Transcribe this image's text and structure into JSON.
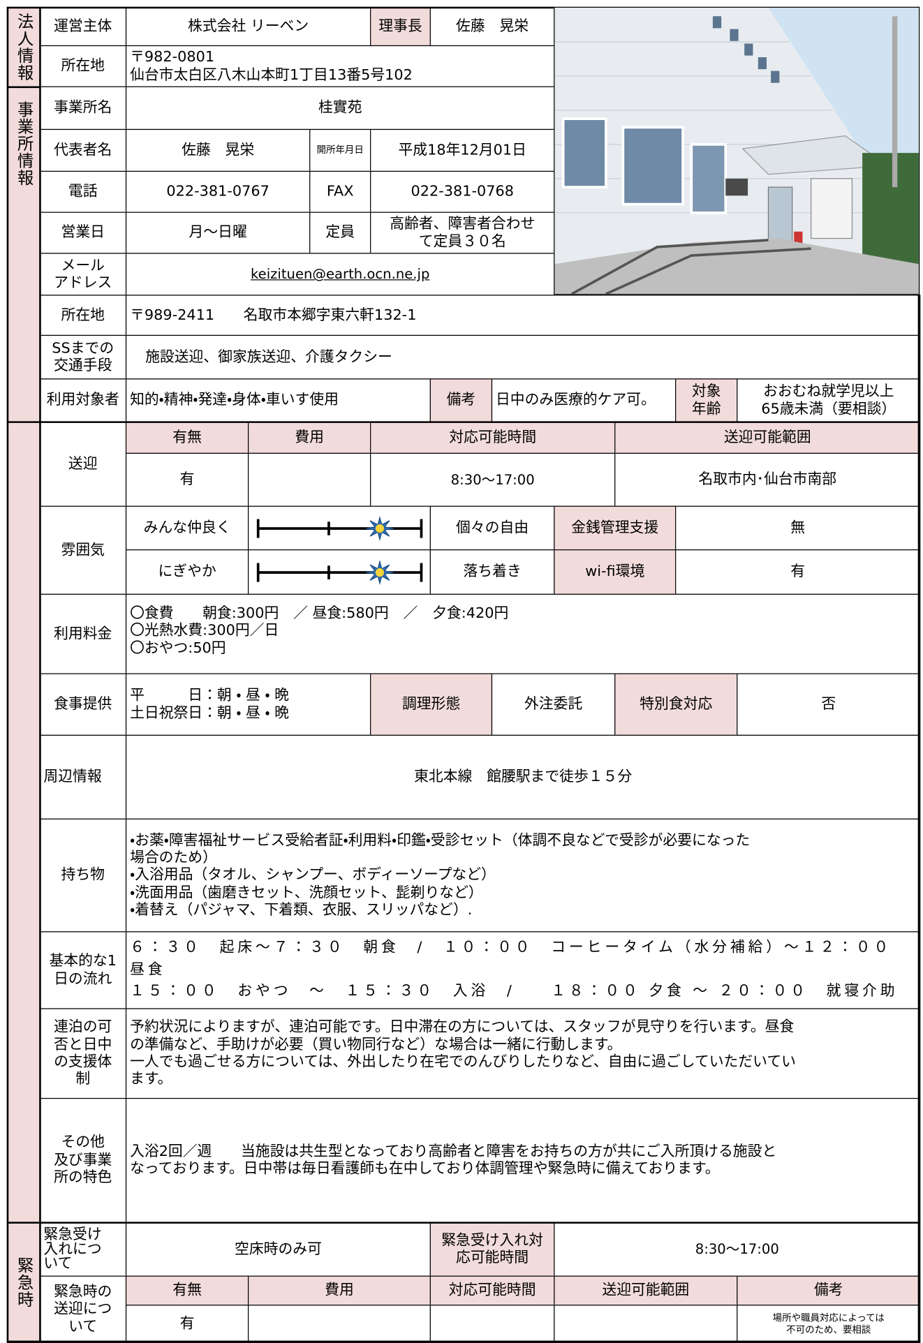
{
  "corporation": {
    "section": "法人情報",
    "operator_label": "運営主体",
    "operator": "株式会社 リーベン",
    "chair_label": "理事長",
    "chair": "佐藤　晃栄",
    "address_label": "所在地",
    "address": [
      "〒982-0801",
      "仙台市太白区八木山本町1丁目13番5号102"
    ]
  },
  "office": {
    "section": "事業所情報",
    "name_label": "事業所名",
    "name": "桂實苑",
    "rep_label": "代表者名",
    "rep": "佐藤　晃栄",
    "opened_label": "開所年月日",
    "opened": "平成18年12月01日",
    "tel_label": "電話",
    "tel": "022-381-0767",
    "fax_label": "FAX",
    "fax": "022-381-0768",
    "days_label": "営業日",
    "days": "月～日曜",
    "capacity_label": "定員",
    "capacity": [
      "高齢者、障害者合わせ",
      "て定員３０名"
    ],
    "mail_label": [
      "メール",
      "アドレス"
    ],
    "mail": "keizituen@earth.ocn.ne.jp",
    "address_label": "所在地",
    "address": "〒989-2411　　名取市本郷字東六軒132-1",
    "access_label": [
      "SSまでの",
      "交通手段"
    ],
    "access": "施設送迎、御家族送迎、介護タクシー",
    "target_label": "利用対象者",
    "target": "知的・精神・発達・身体・車いす使用",
    "remarks_label": "備考",
    "remarks": "日中のみ医療的ケア可。",
    "age_label": [
      "対象",
      "年齢"
    ],
    "age": [
      "おおむね就学児以上",
      "65歳未満（要相談）"
    ]
  },
  "services": {
    "transport_label": "送迎",
    "transport_headers": [
      "有無",
      "費用",
      "対応可能時間",
      "送迎可能範囲"
    ],
    "transport": {
      "available": "有",
      "hours": "8:30～17:00",
      "area": "名取市内･仙台市南部"
    },
    "atmosphere_label": "雰囲気",
    "atmosphere": [
      {
        "left": "みんな仲良く",
        "right": "個々の自由"
      },
      {
        "left": "にぎやか",
        "right": "落ち着き"
      }
    ],
    "money_label": "金銭管理支援",
    "money": "無",
    "wifi_label": "wi-fi環境",
    "wifi": "有",
    "fee_label": "利用料金",
    "fee": [
      "〇食費　　朝食:300円　／ 昼食:580円　／　夕食:420円",
      "〇光熱水費:300円／日",
      "〇おやつ:50円"
    ],
    "meal_label": "食事提供",
    "meal": [
      "平　　　日：朝 ・ 昼 ・ 晩",
      "土日祝祭日：朝 ・ 昼 ・ 晩"
    ],
    "cooking_label": "調理形態",
    "cooking": "外注委託",
    "special_label": "特別食対応",
    "special": "否",
    "area_label": "周辺情報",
    "area": "東北本線　館腰駅まで徒歩１５分",
    "items_label": "持ち物",
    "items": [
      "・お薬・障害福祉サービス受給者証・利用料・印鑑・受診セット（体調不良などで受診が必要になった",
      "場合のため）",
      "・入浴用品（タオル、シャンプー、ボディーソープなど）",
      "・洗面用品（歯磨きセット、洗顔セット、髭剃りなど）",
      "・着替え（パジャマ、下着類、衣服、スリッパなど）."
    ],
    "flow_label": [
      "基本的な1",
      "日の流れ"
    ],
    "flow": [
      "６：３０　起床～７：３０　朝食　/　１０：００　コーヒータイム（水分補給）～１２：００　昼食",
      "１５：００　おやつ　～　１５：３０　入浴　/　　１８：００ 夕食 ～ ２０：００　就寝介助"
    ],
    "stay_label": [
      "連泊の可",
      "否と日中",
      "の支援体",
      "制"
    ],
    "stay": [
      "予約状況によりますが、連泊可能です。日中滞在の方については、スタッフが見守りを行います。昼食",
      "の準備など、手助けが必要（買い物同行など）な場合は一緒に行動します。",
      "一人でも過ごせる方については、外出したり在宅でのんびりしたりなど、自由に過ごしていただいてい",
      "ます。"
    ],
    "other_label": [
      "その他",
      "及び事業",
      "所の特色"
    ],
    "other": [
      "入浴2回／週　　当施設は共生型となっており高齢者と障害をお持ちの方が共にご入所頂ける施設と",
      "なっております。日中帯は毎日看護師も在中しており体調管理や緊急時に備えております。"
    ]
  },
  "emergency": {
    "section": "緊急時",
    "accept_label": [
      "緊急受け",
      "入れにつ",
      "いて"
    ],
    "accept": "空床時のみ可",
    "accept_hours_label": [
      "緊急受け入れ対",
      "応可能時間"
    ],
    "accept_hours": "8:30～17:00",
    "transport_label": [
      "緊急時の",
      "送迎につ",
      "いて"
    ],
    "transport_headers": [
      "有無",
      "費用",
      "対応可能時間",
      "送迎可能範囲",
      "備考"
    ],
    "transport_available": "有",
    "transport_note": [
      "場所や職員対応によっては",
      "不可のため、要相談"
    ]
  }
}
